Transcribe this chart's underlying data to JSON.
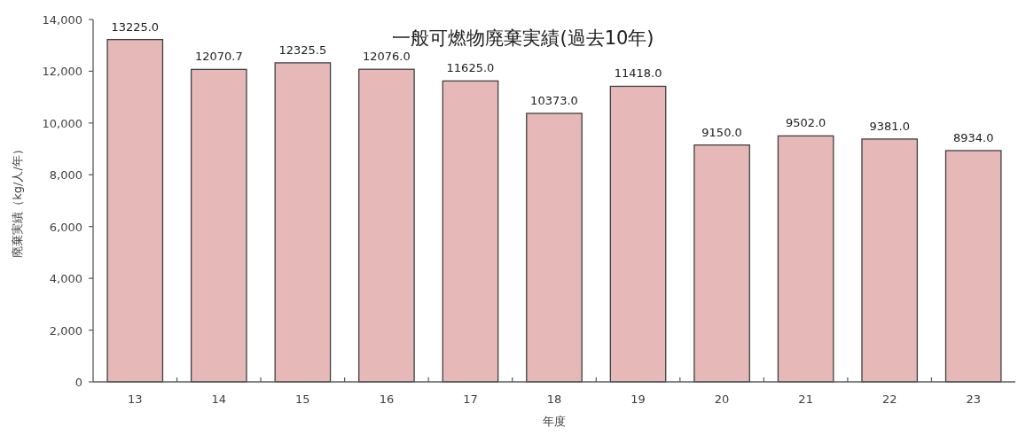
{
  "chart_data": {
    "type": "bar",
    "title": "一般可燃物廃棄実績(過去10年)",
    "xlabel": "年度",
    "ylabel": "廃棄実績（kg/人/年）",
    "categories": [
      "13",
      "14",
      "15",
      "16",
      "17",
      "18",
      "19",
      "20",
      "21",
      "22",
      "23"
    ],
    "values": [
      13225,
      12070.7,
      12325.5,
      12076,
      11625,
      10373,
      11418,
      9150,
      9502,
      9381,
      8934
    ],
    "value_labels": [
      "13225.0",
      "12070.7",
      "12325.5",
      "12076.0",
      "11625.0",
      "10373.0",
      "11418.0",
      "9150.0",
      "9502.0",
      "9381.0",
      "8934.0"
    ],
    "color": "#e6b8b7",
    "ylim": [
      0,
      14000
    ],
    "yticks": [
      0,
      {
        "value": 2000,
        "label": "2,000"
      },
      {
        "value": 4000,
        "label": "4,000"
      },
      {
        "value": 6000,
        "label": "6,000"
      },
      {
        "value": 8000,
        "label": "8,000"
      },
      {
        "value": 10000,
        "label": "10,000"
      },
      {
        "value": 12000,
        "label": "12,000"
      },
      {
        "value": 14000,
        "label": "14,000"
      }
    ],
    "grid": false,
    "legend": false
  }
}
